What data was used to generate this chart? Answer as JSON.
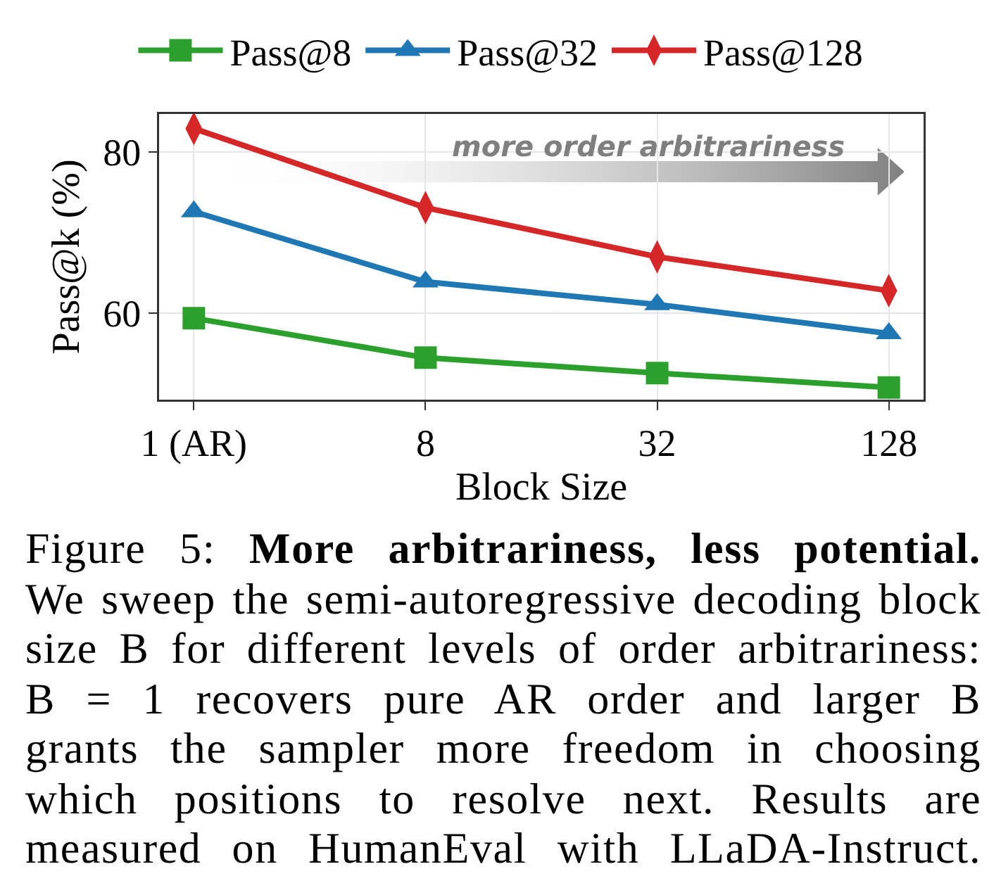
{
  "chart_data": {
    "type": "line",
    "categories": [
      "1 (AR)",
      "8",
      "32",
      "128"
    ],
    "series": [
      {
        "name": "Pass@8",
        "color": "#2ca02c",
        "marker": "square",
        "values": [
          59.4,
          54.5,
          52.6,
          50.8
        ]
      },
      {
        "name": "Pass@32",
        "color": "#1f77b4",
        "marker": "triangle",
        "values": [
          72.6,
          63.9,
          61.1,
          57.5
        ]
      },
      {
        "name": "Pass@128",
        "color": "#d62728",
        "marker": "diamond",
        "values": [
          82.9,
          73.1,
          67.0,
          62.8
        ]
      }
    ],
    "xlabel": "Block Size",
    "ylabel": "Pass@k (%)",
    "ylim": [
      49.3,
      84.7
    ],
    "yticks": [
      60,
      80
    ],
    "grid": true,
    "legend": "top",
    "line_style": "solid",
    "annotations": [
      "more order arbitrariness",
      "Figure 5:",
      "More arbitrariness, less potential.",
      "We sweep the semi-autoregressive decoding block",
      "size B for different levels of order arbitrariness:",
      "B = 1 recovers pure AR order and larger B",
      "grants the sampler more freedom in choosing",
      "which positions to resolve next. Results are",
      "measured on HumanEval with LLaDA-Instruct."
    ]
  }
}
